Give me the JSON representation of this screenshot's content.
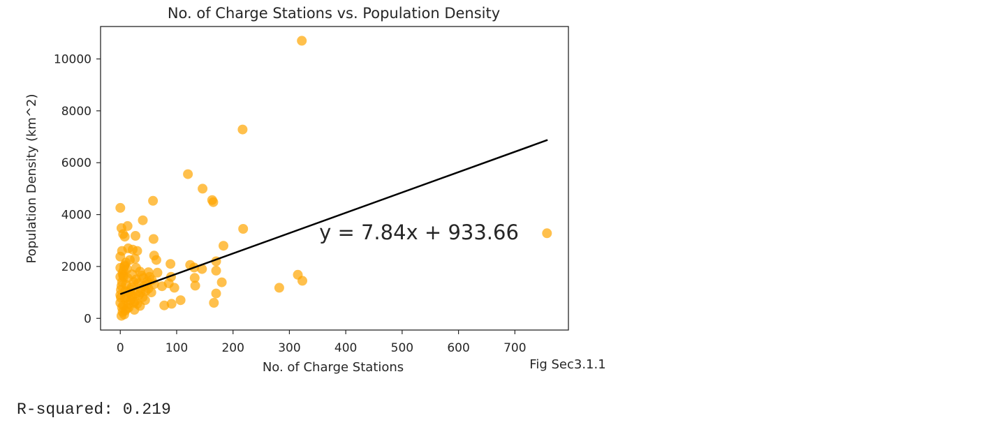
{
  "chart_data": {
    "type": "scatter",
    "title": "No. of Charge Stations vs. Population Density",
    "xlabel": "No. of Charge Stations",
    "ylabel": "Population Density (km^2)",
    "xlim": [
      -35,
      795
    ],
    "ylim": [
      -450,
      11250
    ],
    "xticks": [
      "0",
      "100",
      "200",
      "300",
      "400",
      "500",
      "600",
      "700"
    ],
    "yticks": [
      "0",
      "2000",
      "4000",
      "6000",
      "8000",
      "10000"
    ],
    "grid": false,
    "marker_color": "#ffa500",
    "line_color": "#000000",
    "regression": {
      "equation": "y = 7.84x + 933.66",
      "slope": 7.84,
      "intercept": 933.66,
      "x_range": [
        0,
        758
      ]
    },
    "points": [
      [
        322,
        10700
      ],
      [
        217,
        7280
      ],
      [
        120,
        5560
      ],
      [
        146,
        5000
      ],
      [
        163,
        4560
      ],
      [
        165,
        4480
      ],
      [
        58,
        4530
      ],
      [
        0,
        4260
      ],
      [
        40,
        3780
      ],
      [
        13,
        3560
      ],
      [
        2,
        3480
      ],
      [
        218,
        3450
      ],
      [
        757,
        3280
      ],
      [
        27,
        3180
      ],
      [
        5,
        3250
      ],
      [
        8,
        3150
      ],
      [
        59,
        3060
      ],
      [
        183,
        2800
      ],
      [
        14,
        2700
      ],
      [
        22,
        2650
      ],
      [
        30,
        2600
      ],
      [
        60,
        2420
      ],
      [
        0,
        2380
      ],
      [
        64,
        2250
      ],
      [
        170,
        2200
      ],
      [
        10,
        2150
      ],
      [
        89,
        2100
      ],
      [
        124,
        2060
      ],
      [
        8,
        2050
      ],
      [
        131,
        1960
      ],
      [
        145,
        1900
      ],
      [
        170,
        1840
      ],
      [
        35,
        1800
      ],
      [
        50,
        1780
      ],
      [
        66,
        1760
      ],
      [
        315,
        1680
      ],
      [
        5,
        1650
      ],
      [
        90,
        1600
      ],
      [
        132,
        1560
      ],
      [
        13,
        1550
      ],
      [
        28,
        1500
      ],
      [
        56,
        1480
      ],
      [
        323,
        1450
      ],
      [
        180,
        1390
      ],
      [
        86,
        1350
      ],
      [
        60,
        1320
      ],
      [
        133,
        1260
      ],
      [
        74,
        1240
      ],
      [
        96,
        1180
      ],
      [
        282,
        1180
      ],
      [
        36,
        1150
      ],
      [
        18,
        1100
      ],
      [
        45,
        1050
      ],
      [
        170,
        960
      ],
      [
        0,
        900
      ],
      [
        22,
        860
      ],
      [
        40,
        820
      ],
      [
        107,
        700
      ],
      [
        8,
        750
      ],
      [
        26,
        650
      ],
      [
        166,
        600
      ],
      [
        91,
        560
      ],
      [
        78,
        500
      ],
      [
        35,
        480
      ],
      [
        3,
        420
      ],
      [
        12,
        380
      ],
      [
        25,
        330
      ],
      [
        4,
        250
      ],
      [
        7,
        150
      ],
      [
        2,
        100
      ],
      [
        15,
        420
      ],
      [
        30,
        560
      ],
      [
        20,
        1200
      ],
      [
        10,
        1300
      ],
      [
        3,
        1400
      ],
      [
        42,
        1250
      ],
      [
        48,
        1420
      ],
      [
        52,
        1600
      ],
      [
        38,
        1650
      ],
      [
        6,
        1850
      ],
      [
        12,
        1900
      ],
      [
        0,
        1950
      ],
      [
        4,
        1750
      ],
      [
        24,
        1400
      ],
      [
        32,
        1350
      ],
      [
        16,
        1000
      ],
      [
        1,
        1100
      ],
      [
        9,
        1050
      ],
      [
        27,
        950
      ],
      [
        44,
        700
      ],
      [
        11,
        800
      ],
      [
        19,
        900
      ],
      [
        0,
        600
      ],
      [
        5,
        500
      ],
      [
        14,
        550
      ],
      [
        33,
        900
      ],
      [
        2,
        1250
      ],
      [
        21,
        1700
      ],
      [
        7,
        2000
      ],
      [
        17,
        2250
      ],
      [
        28,
        1950
      ],
      [
        41,
        1550
      ],
      [
        0,
        1600
      ],
      [
        6,
        1600
      ],
      [
        36,
        1000
      ],
      [
        50,
        1150
      ],
      [
        24,
        600
      ],
      [
        9,
        300
      ],
      [
        1,
        800
      ],
      [
        18,
        700
      ],
      [
        3,
        2600
      ],
      [
        26,
        2300
      ],
      [
        47,
        1300
      ],
      [
        55,
        1000
      ]
    ],
    "figure_caption": "Fig Sec3.1.1"
  },
  "output": {
    "r_squared_text": "R-squared: 0.219"
  }
}
